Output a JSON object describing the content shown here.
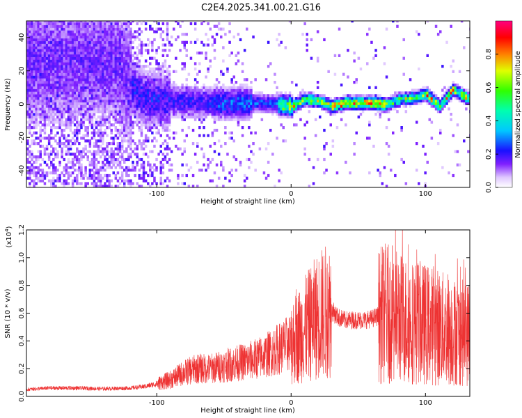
{
  "chart_data": [
    {
      "type": "heatmap",
      "title": "C2E4.2025.341.00.21.G16",
      "xlabel": "Height of straight line (km)",
      "ylabel": "Frequency (Hz)",
      "xlim": [
        -197,
        133
      ],
      "ylim": [
        -50,
        50
      ],
      "xticks": [
        -100,
        0,
        100
      ],
      "xtick_labels": [
        "-100",
        "0",
        "100"
      ],
      "yticks": [
        -40,
        -20,
        0,
        20,
        40
      ],
      "ytick_labels": [
        "-40",
        "-20",
        "0",
        "20",
        "40"
      ],
      "colorbar": {
        "label": "Normalized spectral amplitude",
        "range": [
          0,
          1
        ],
        "ticks": [
          0.0,
          0.2,
          0.4,
          0.6,
          0.8
        ],
        "tick_labels": [
          "0.0",
          "0.2",
          "0.4",
          "0.6",
          "0.8"
        ],
        "colormap": "rainbow (white-violet-blue-cyan-green-yellow-red-magenta)"
      },
      "ridge": {
        "description": "main spectral ridge center frequency vs height",
        "x": [
          -130,
          -120,
          -110,
          -100,
          -80,
          -60,
          -40,
          -20,
          0,
          10,
          20,
          30,
          40,
          50,
          60,
          70,
          80,
          90,
          100,
          110,
          120,
          130
        ],
        "y": [
          25,
          10,
          3,
          2,
          1,
          0,
          0,
          0,
          -2,
          2,
          1,
          -2,
          0,
          0,
          0,
          -1,
          2,
          3,
          5,
          -2,
          8,
          3
        ]
      }
    },
    {
      "type": "line",
      "xlabel": "Height of straight line (km)",
      "ylabel": "SNR (10 * v/v)",
      "y_multiplier": "(x10",
      "y_multiplier_exp": "4",
      "y_multiplier_close": ")",
      "xlim": [
        -197,
        133
      ],
      "ylim": [
        0,
        12000
      ],
      "xticks": [
        -100,
        0,
        100
      ],
      "xtick_labels": [
        "-100",
        "0",
        "100"
      ],
      "yticks": [
        0,
        2000,
        4000,
        6000,
        8000,
        10000,
        12000
      ],
      "ytick_labels": [
        "0.0",
        "0.2",
        "0.4",
        "0.6",
        "0.8",
        "1.0",
        "1.2"
      ],
      "color": "#ee3333",
      "series": [
        {
          "name": "SNR",
          "x": [
            -197,
            -180,
            -160,
            -140,
            -120,
            -110,
            -100,
            -90,
            -80,
            -70,
            -60,
            -50,
            -40,
            -30,
            -20,
            -10,
            0,
            5,
            10,
            15,
            20,
            25,
            30,
            35,
            40,
            45,
            50,
            55,
            60,
            65,
            70,
            75,
            80,
            85,
            90,
            95,
            100,
            105,
            110,
            115,
            120,
            125,
            133
          ],
          "y": [
            500,
            600,
            600,
            550,
            600,
            700,
            900,
            1200,
            1700,
            2000,
            2000,
            2200,
            2400,
            2600,
            2900,
            3400,
            3900,
            4300,
            4800,
            5300,
            5800,
            6100,
            6200,
            5700,
            5500,
            5500,
            5500,
            5500,
            5600,
            5800,
            6000,
            5900,
            5700,
            5500,
            5400,
            5300,
            5200,
            5100,
            5000,
            4800,
            4700,
            4600,
            4500
          ]
        }
      ]
    }
  ]
}
